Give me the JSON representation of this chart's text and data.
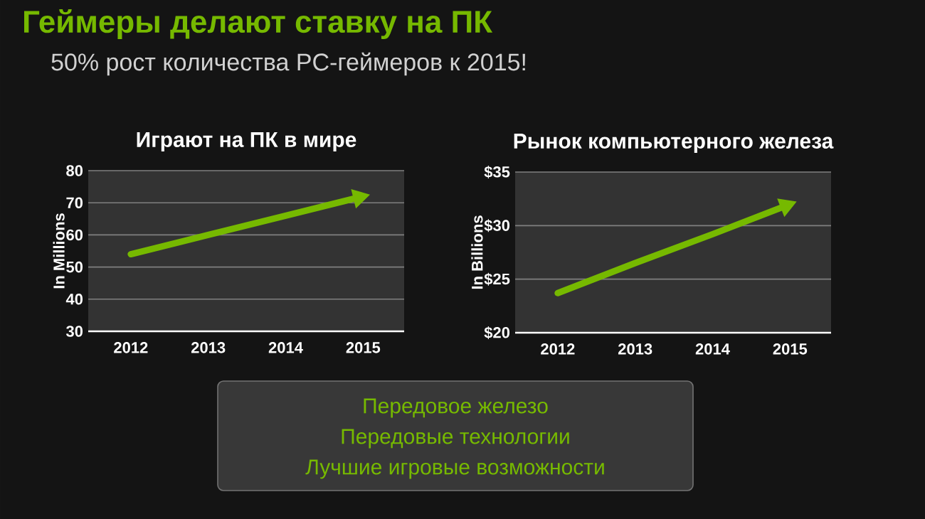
{
  "chart_data": [
    {
      "type": "other",
      "title": "Геймеры делают ставку на ПК",
      "subtitle": "50% рост количества PC-геймеров к 2015!"
    },
    {
      "type": "line",
      "title": "Играют на ПК в мире",
      "ylabel": "In Millions",
      "categories": [
        "2012",
        "2013",
        "2014",
        "2015"
      ],
      "series": [
        {
          "color": "#76b900",
          "values": [
            54,
            60,
            66,
            72
          ]
        }
      ],
      "ylim": [
        30,
        80
      ],
      "yticks": [
        30,
        40,
        50,
        60,
        70,
        80
      ],
      "grid": "y",
      "marker": "none",
      "line_style": "solid"
    },
    {
      "type": "line",
      "title": "Рынок компьютерного железа",
      "ylabel": "In Billions",
      "categories": [
        "2012",
        "2013",
        "2014",
        "2015"
      ],
      "series": [
        {
          "color": "#76b900",
          "values": [
            23.7,
            26.5,
            29.2,
            32
          ]
        }
      ],
      "ylim": [
        20,
        35
      ],
      "yticks": [
        {
          "value": 20,
          "label": "$20"
        },
        {
          "value": 25,
          "label": "$25"
        },
        {
          "value": 30,
          "label": "$30"
        },
        {
          "value": 35,
          "label": "$35"
        }
      ],
      "grid": "y",
      "marker": "none",
      "line_style": "solid"
    },
    {
      "type": "other",
      "annotations": [
        "Передовое железо",
        "Передовые технологии",
        "Лучшие игровые возможности"
      ]
    }
  ]
}
